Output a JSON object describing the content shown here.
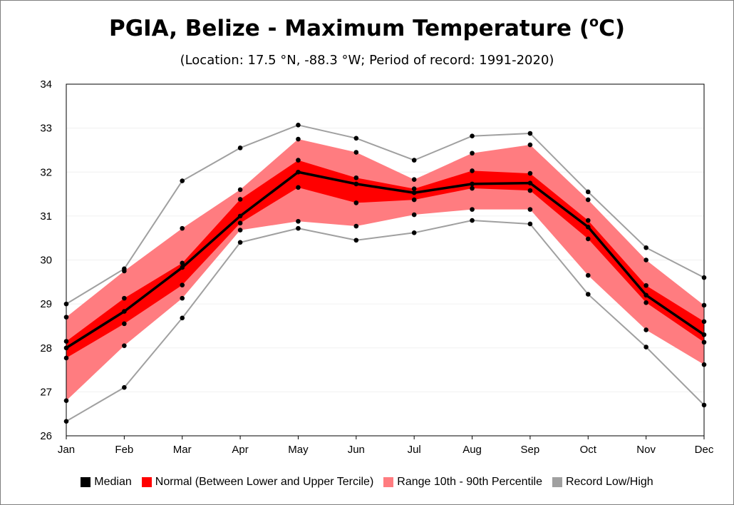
{
  "title_main": "PGIA, Belize - Maximum Temperature (",
  "title_sup": "o",
  "title_end": "C)",
  "subtitle": "(Location: 17.5 °N, -88.3 °W; Period of record: 1991-2020)",
  "colors": {
    "median": "#000000",
    "normal": "#ff0000",
    "range": "#ff7c80",
    "record": "#a0a0a0"
  },
  "legend": [
    {
      "label": "Median",
      "color": "#000000"
    },
    {
      "label": "Normal (Between Lower and Upper Tercile)",
      "color": "#ff0000"
    },
    {
      "label": "Range 10th - 90th Percentile",
      "color": "#ff7c80"
    },
    {
      "label": "Record Low/High",
      "color": "#a0a0a0"
    }
  ],
  "chart_data": {
    "type": "line",
    "title": "PGIA, Belize - Maximum Temperature (oC)",
    "subtitle": "(Location: 17.5 °N, -88.3 °W; Period of record: 1991-2020)",
    "categories": [
      "Jan",
      "Feb",
      "Mar",
      "Apr",
      "May",
      "Jun",
      "Jul",
      "Aug",
      "Sep",
      "Oct",
      "Nov",
      "Dec"
    ],
    "ylim": [
      26,
      34
    ],
    "yticks": [
      "26",
      "27",
      "28",
      "29",
      "30",
      "31",
      "32",
      "33",
      "34"
    ],
    "grid": true,
    "legend_position": "bottom",
    "series": [
      {
        "name": "Record Low/High",
        "role": "record_high",
        "values": [
          29.0,
          29.8,
          31.8,
          32.55,
          33.07,
          32.77,
          32.27,
          32.82,
          32.88,
          31.55,
          30.28,
          29.6
        ]
      },
      {
        "name": "Record Low/High",
        "role": "record_low",
        "values": [
          26.33,
          27.1,
          28.68,
          30.4,
          30.72,
          30.45,
          30.62,
          30.9,
          30.82,
          29.22,
          28.02,
          26.7
        ]
      },
      {
        "name": "Range 10th - 90th Percentile",
        "role": "p90",
        "values": [
          28.7,
          29.75,
          30.72,
          31.6,
          32.75,
          32.45,
          31.83,
          32.43,
          32.62,
          31.37,
          30.0,
          28.97
        ]
      },
      {
        "name": "Range 10th - 90th Percentile",
        "role": "p10",
        "values": [
          26.8,
          28.05,
          29.13,
          30.68,
          30.88,
          30.77,
          31.03,
          31.15,
          31.15,
          29.65,
          28.41,
          27.62
        ]
      },
      {
        "name": "Normal (Between Lower and Upper Tercile)",
        "role": "upper_tercile",
        "values": [
          28.15,
          29.13,
          29.93,
          31.38,
          32.27,
          31.87,
          31.62,
          32.03,
          31.97,
          30.9,
          29.42,
          28.6
        ]
      },
      {
        "name": "Normal (Between Lower and Upper Tercile)",
        "role": "lower_tercile",
        "values": [
          27.77,
          28.55,
          29.43,
          30.84,
          31.65,
          31.3,
          31.37,
          31.63,
          31.58,
          30.48,
          29.03,
          28.13
        ]
      },
      {
        "name": "Median",
        "role": "median",
        "values": [
          28.0,
          28.83,
          29.83,
          31.0,
          32.0,
          31.73,
          31.53,
          31.73,
          31.75,
          30.75,
          29.2,
          28.3
        ]
      }
    ]
  }
}
